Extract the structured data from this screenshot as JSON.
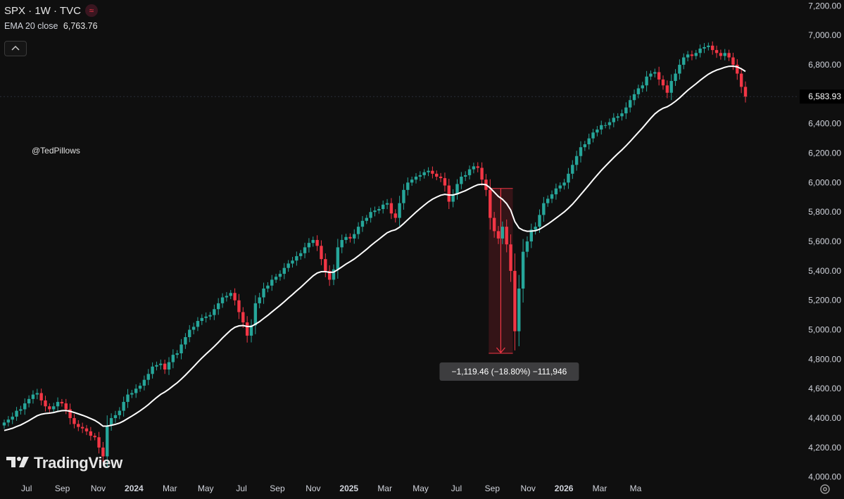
{
  "legend": {
    "symbol": "SPX · 1W · TVC",
    "badge_icon": "≈",
    "indicator_label": "EMA 20 close",
    "indicator_value": "6,763.76"
  },
  "watermark": "@TedPillows",
  "brand": "TradingView",
  "colors": {
    "background": "#0f0f0f",
    "up": "#26a69a",
    "down": "#f23645",
    "ema": "#ffffff",
    "range_fill": "#3b1519",
    "range_line": "#f23645"
  },
  "chart_data": {
    "type": "candlestick",
    "interval": "1W",
    "x_tick_labels": [
      "Jul",
      "Sep",
      "Nov",
      "2024",
      "Mar",
      "May",
      "Jul",
      "Sep",
      "Nov",
      "2025",
      "Mar",
      "May",
      "Jul",
      "Sep",
      "Nov",
      "2026",
      "Mar",
      "Ma"
    ],
    "y_tick_labels": [
      "4,000.00",
      "4,200.00",
      "4,400.00",
      "4,600.00",
      "4,800.00",
      "5,000.00",
      "5,200.00",
      "5,400.00",
      "5,600.00",
      "5,800.00",
      "6,000.00",
      "6,200.00",
      "6,400.00",
      "6,600.00",
      "6,800.00",
      "7,000.00",
      "7,200.00"
    ],
    "y_ticks": [
      4000,
      4200,
      4400,
      4600,
      4800,
      5000,
      5200,
      5400,
      5600,
      5800,
      6000,
      6200,
      6400,
      6600,
      6800,
      7000,
      7200
    ],
    "ylim": [
      3970,
      7240
    ],
    "last_price": 6583.93,
    "last_price_label": "6,583.93",
    "closes": [
      4370,
      4390,
      4410,
      4450,
      4460,
      4500,
      4530,
      4560,
      4570,
      4520,
      4480,
      4460,
      4480,
      4510,
      4500,
      4460,
      4400,
      4360,
      4340,
      4330,
      4310,
      4280,
      4270,
      4200,
      4140,
      4350,
      4400,
      4420,
      4450,
      4510,
      4560,
      4570,
      4600,
      4620,
      4660,
      4700,
      4750,
      4760,
      4770,
      4730,
      4780,
      4830,
      4840,
      4900,
      4950,
      5000,
      5020,
      5060,
      5080,
      5090,
      5100,
      5140,
      5180,
      5220,
      5230,
      5250,
      5200,
      5120,
      5050,
      4960,
      5030,
      5180,
      5220,
      5280,
      5300,
      5340,
      5360,
      5380,
      5420,
      5450,
      5470,
      5500,
      5520,
      5560,
      5590,
      5610,
      5570,
      5480,
      5400,
      5340,
      5410,
      5560,
      5610,
      5630,
      5620,
      5650,
      5700,
      5740,
      5760,
      5800,
      5810,
      5820,
      5850,
      5860,
      5790,
      5760,
      5860,
      5950,
      6000,
      6020,
      6040,
      6050,
      6070,
      6080,
      6060,
      6040,
      6030,
      5980,
      5870,
      5920,
      5990,
      6040,
      6050,
      6090,
      6110,
      6100,
      6020,
      5950,
      5760,
      5670,
      5620,
      5700,
      5580,
      5400,
      4990,
      5280,
      5530,
      5600,
      5680,
      5700,
      5780,
      5860,
      5890,
      5920,
      5960,
      5980,
      6000,
      6060,
      6120,
      6180,
      6240,
      6260,
      6300,
      6340,
      6360,
      6390,
      6390,
      6410,
      6440,
      6450,
      6470,
      6510,
      6560,
      6600,
      6640,
      6660,
      6720,
      6740,
      6750,
      6700,
      6660,
      6610,
      6690,
      6740,
      6800,
      6850,
      6870,
      6860,
      6880,
      6910,
      6920,
      6930,
      6900,
      6880,
      6860,
      6880,
      6850,
      6800,
      6740,
      6650,
      6583.93
    ],
    "ema_label": "EMA 20 close",
    "ema_last": 6763.76,
    "measure": {
      "label": "−1,119.46 (−18.80%) −111,946",
      "from_index": 118,
      "to_index": 123,
      "top_price": 5960,
      "bottom_price": 4840
    }
  }
}
